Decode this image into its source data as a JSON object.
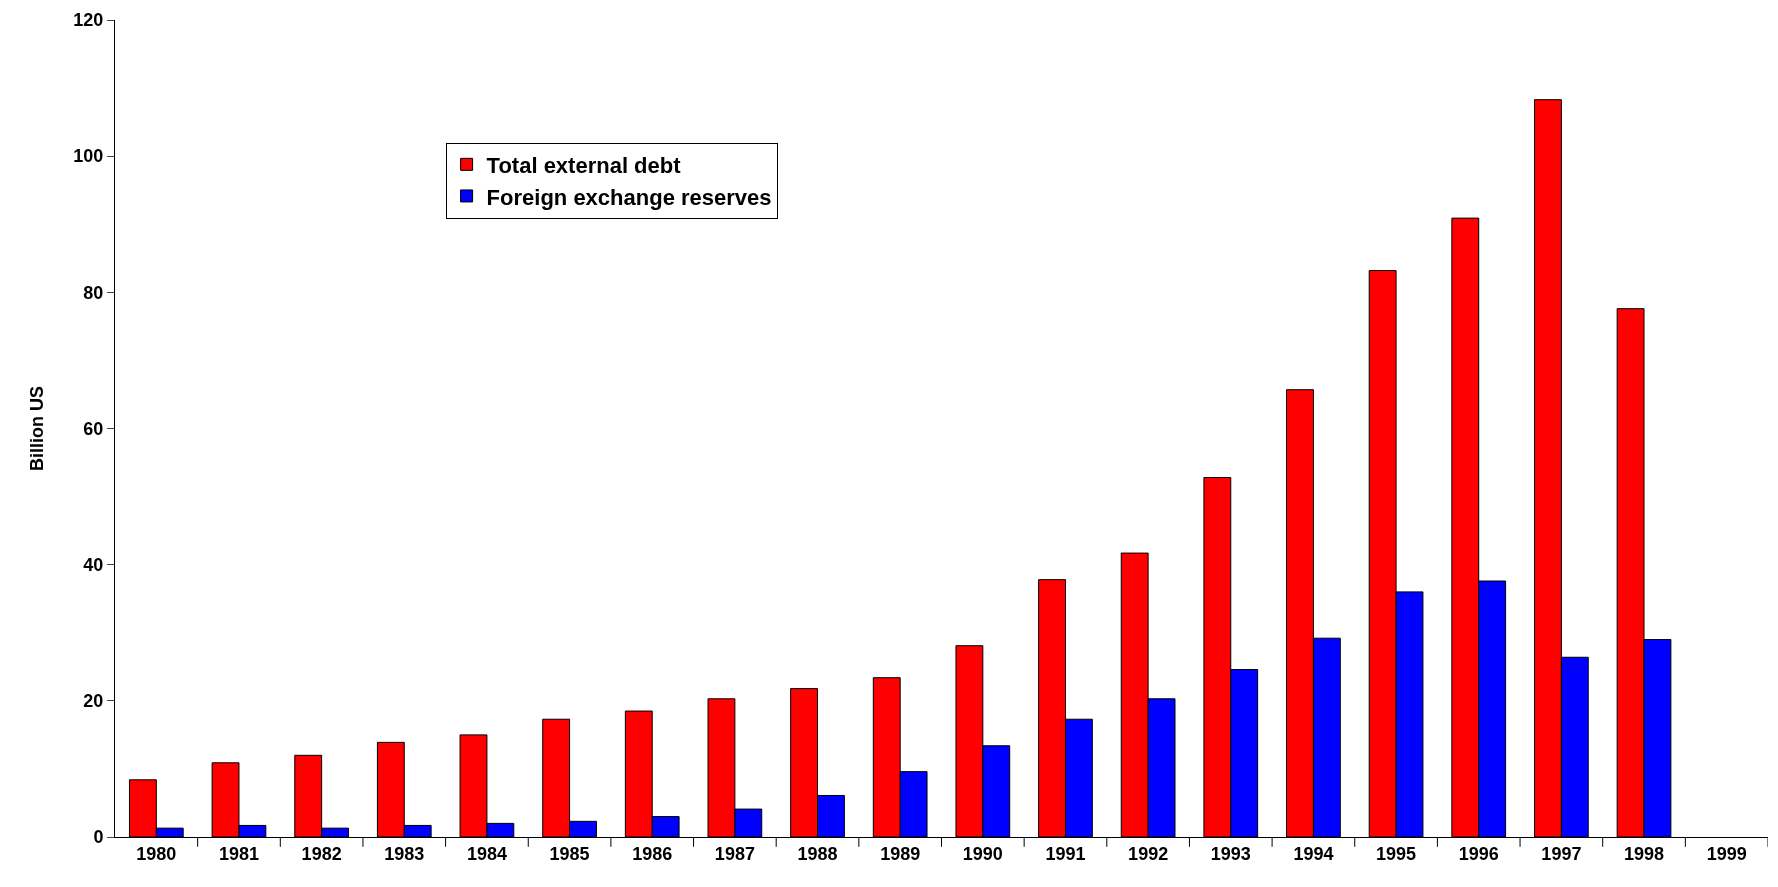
{
  "chart_data": {
    "type": "bar",
    "ylabel": "Billion US",
    "categories": [
      "1980",
      "1981",
      "1982",
      "1983",
      "1984",
      "1985",
      "1986",
      "1987",
      "1988",
      "1989",
      "1990",
      "1991",
      "1992",
      "1993",
      "1994",
      "1995",
      "1996",
      "1997",
      "1998",
      "1999"
    ],
    "series": [
      {
        "name": "Total external debt",
        "color": "#ff0000",
        "values": [
          8.4,
          10.9,
          12.0,
          13.9,
          15.0,
          17.3,
          18.5,
          20.3,
          21.8,
          23.4,
          28.1,
          37.8,
          41.7,
          52.8,
          65.7,
          83.2,
          90.9,
          108.3,
          77.6,
          null
        ]
      },
      {
        "name": "Foreign exchange reserves",
        "color": "#0000ff",
        "values": [
          1.3,
          1.7,
          1.3,
          1.7,
          2.0,
          2.3,
          3.0,
          4.1,
          6.1,
          9.6,
          13.4,
          17.3,
          20.3,
          24.6,
          29.2,
          36.0,
          37.6,
          26.4,
          29.0,
          null
        ]
      }
    ],
    "ylim": [
      0,
      120
    ],
    "yticks": [
      0,
      20,
      40,
      60,
      80,
      100,
      120
    ],
    "grid": false,
    "legend": "top left"
  }
}
